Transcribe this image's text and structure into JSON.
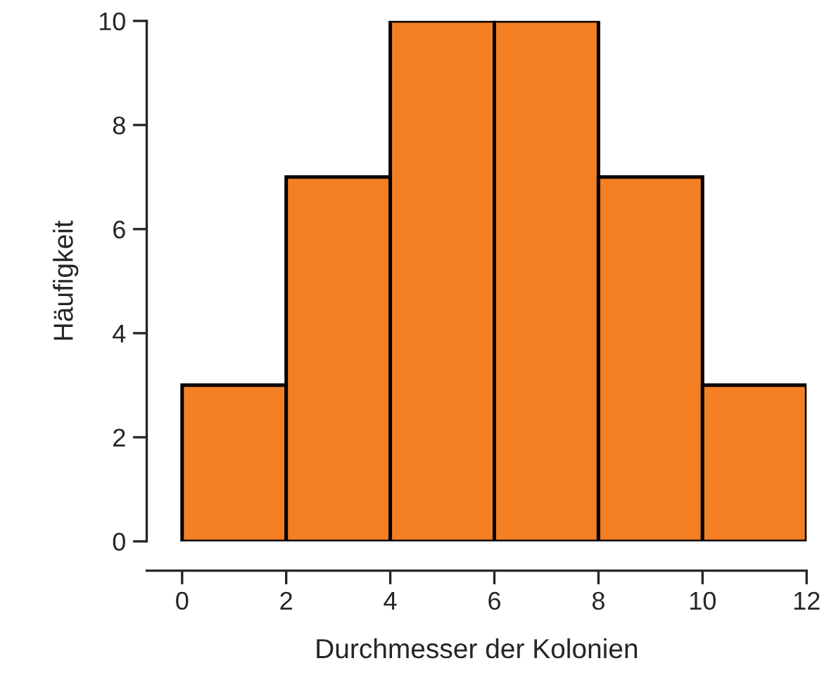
{
  "chart_data": {
    "type": "histogram",
    "xlabel": "Durchmesser der Kolonien",
    "ylabel": "Häufigkeit",
    "bins": [
      0,
      2,
      4,
      6,
      8,
      10,
      12
    ],
    "values": [
      3,
      7,
      10,
      10,
      7,
      3
    ],
    "color": "#f47f24",
    "xlim": [
      -0.68,
      12
    ],
    "xticks": [
      0,
      2,
      4,
      6,
      8,
      10,
      12
    ],
    "ylim": [
      0,
      10
    ],
    "yticks": [
      0,
      2,
      4,
      6,
      8,
      10
    ],
    "grid": false
  }
}
